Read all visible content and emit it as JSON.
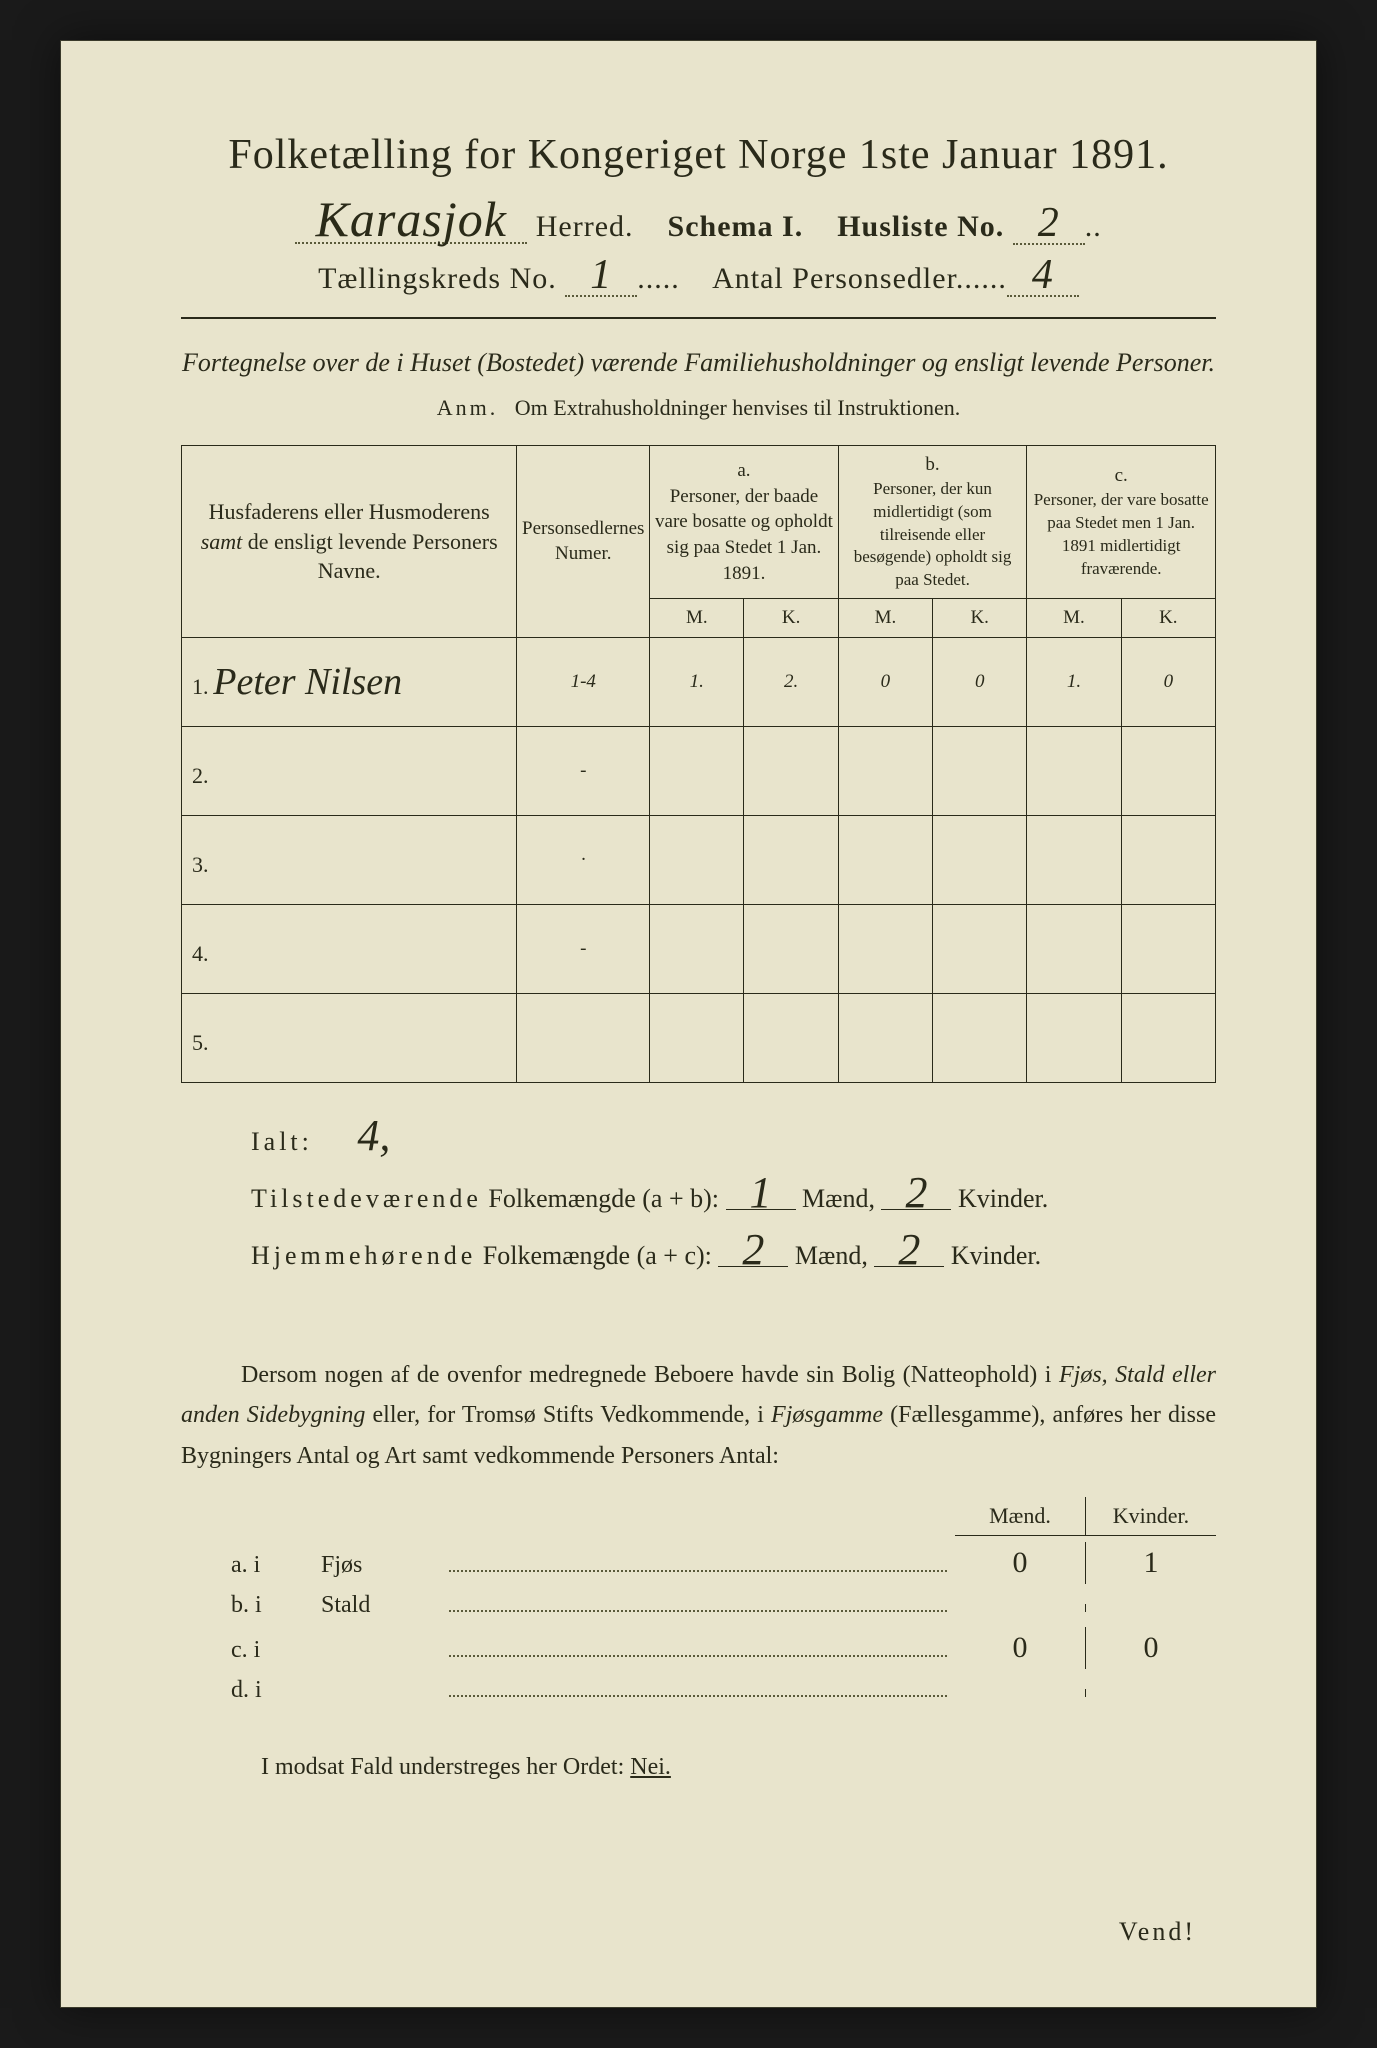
{
  "title": "Folketælling for Kongeriget Norge 1ste Januar 1891.",
  "header": {
    "herred_hw": "Karasjok",
    "herred_label": "Herred.",
    "schema": "Schema I.",
    "husliste_label": "Husliste No.",
    "husliste_hw": "2",
    "kreds_label": "Tællingskreds No.",
    "kreds_hw": "1",
    "antal_label": "Antal Personsedler",
    "antal_hw": "4"
  },
  "subtitle": "Fortegnelse over de i Huset (Bostedet) værende Familiehusholdninger og ensligt levende Personer.",
  "anm_label": "Anm.",
  "anm_text": "Om Extrahusholdninger henvises til Instruktionen.",
  "table": {
    "col_name": "Husfaderens eller Husmoderens samt de ensligt levende Personers Navne.",
    "col_num": "Personsedlernes Numer.",
    "col_a_label": "a.",
    "col_a": "Personer, der baade vare bosatte og opholdt sig paa Stedet 1 Jan. 1891.",
    "col_b_label": "b.",
    "col_b": "Personer, der kun midlertidigt (som tilreisende eller besøgende) opholdt sig paa Stedet.",
    "col_c_label": "c.",
    "col_c": "Personer, der vare bosatte paa Stedet men 1 Jan. 1891 midlertidigt fraværende.",
    "m": "M.",
    "k": "K.",
    "rows": [
      {
        "n": "1.",
        "name": "Peter Nilsen",
        "num": "1-4",
        "am": "1.",
        "ak": "2.",
        "bm": "0",
        "bk": "0",
        "cm": "1.",
        "ck": "0"
      },
      {
        "n": "2.",
        "name": "",
        "num": "-",
        "am": "",
        "ak": "",
        "bm": "",
        "bk": "",
        "cm": "",
        "ck": ""
      },
      {
        "n": "3.",
        "name": "",
        "num": "·",
        "am": "",
        "ak": "",
        "bm": "",
        "bk": "",
        "cm": "",
        "ck": ""
      },
      {
        "n": "4.",
        "name": "",
        "num": "-",
        "am": "",
        "ak": "",
        "bm": "",
        "bk": "",
        "cm": "",
        "ck": ""
      },
      {
        "n": "5.",
        "name": "",
        "num": "",
        "am": "",
        "ak": "",
        "bm": "",
        "bk": "",
        "cm": "",
        "ck": ""
      }
    ]
  },
  "summary": {
    "ialt_label": "Ialt:",
    "ialt_hw": "4,",
    "tilstede_label": "Tilstedeværende",
    "folke": "Folkemængde",
    "ab": "(a + b):",
    "ac": "(a + c):",
    "hjemme_label": "Hjemmehørende",
    "maend": "Mænd,",
    "kvinder": "Kvinder.",
    "t_m": "1",
    "t_k": "2",
    "h_m": "2",
    "h_k": "2"
  },
  "para": "Dersom nogen af de ovenfor medregnede Beboere havde sin Bolig (Natteophold) i Fjøs, Stald eller anden Sidebygning eller, for Tromsø Stifts Vedkommende, i Fjøsgamme (Fællesgamme), anføres her disse Bygningers Antal og Art samt vedkommende Personers Antal:",
  "buildings": {
    "header_m": "Mænd.",
    "header_k": "Kvinder.",
    "rows": [
      {
        "l": "a.  i",
        "name": "Fjøs",
        "m": "0",
        "k": "1"
      },
      {
        "l": "b.  i",
        "name": "Stald",
        "m": "",
        "k": ""
      },
      {
        "l": "c.  i",
        "name": "",
        "m": "0",
        "k": "0"
      },
      {
        "l": "d.  i",
        "name": "",
        "m": "",
        "k": ""
      }
    ]
  },
  "footer": "I modsat Fald understreges her Ordet:",
  "nei": "Nei.",
  "vend": "Vend!"
}
